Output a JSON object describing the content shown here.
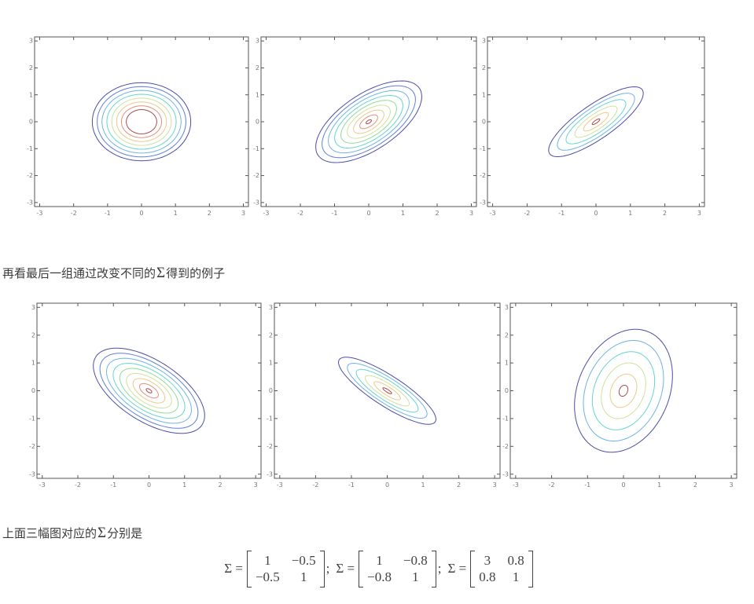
{
  "style": {
    "background": "#ffffff",
    "axis_color": "#555555",
    "tick_label_color": "#777777",
    "caption_color": "#3b3b3b",
    "formula_color": "#424242",
    "jet_palette": [
      "#4d4da6",
      "#5f7fdb",
      "#6fb3e6",
      "#66d6ce",
      "#90dc96",
      "#cde39b",
      "#ecc988",
      "#e28f7a",
      "#a94c4c"
    ]
  },
  "captions": {
    "mid": {
      "pre": "再看最后一组通过改变不同的",
      "sigma": "Σ",
      "post": "得到的例子"
    },
    "bottom": {
      "pre": "上面三幅图对应的",
      "sigma": "Σ",
      "post": "分别是"
    }
  },
  "formula": {
    "entries": [
      {
        "lhs": "Σ =",
        "c00": "1",
        "c01": "−0.5",
        "c10": "−0.5",
        "c11": "1",
        "sep": ";"
      },
      {
        "lhs": "Σ =",
        "c00": "1",
        "c01": "−0.8",
        "c10": "−0.8",
        "c11": "1",
        "sep": ";"
      },
      {
        "lhs": "Σ =",
        "c00": "3",
        "c01": "0.8",
        "c10": "0.8",
        "c11": "1",
        "sep": ""
      }
    ]
  },
  "chart_data": [
    {
      "type": "contour",
      "position": "row1-col1",
      "xlim": [
        -3.15,
        3.15
      ],
      "ylim": [
        -3.15,
        3.15
      ],
      "xticks": [
        -3,
        -2,
        -1,
        0,
        1,
        2,
        3
      ],
      "yticks": [
        -3,
        -2,
        -1,
        0,
        1,
        2,
        3
      ],
      "center": [
        0,
        0
      ],
      "major_semiaxis": 1.45,
      "minor_semiaxis": 1.45,
      "angle_deg": 0,
      "levels": 8,
      "inner_frac": 0.31,
      "title": "",
      "xlabel": "",
      "ylabel": "",
      "grid": false
    },
    {
      "type": "contour",
      "position": "row1-col2",
      "xlim": [
        -3.15,
        3.15
      ],
      "ylim": [
        -3.15,
        3.15
      ],
      "xticks": [
        -3,
        -2,
        -1,
        0,
        1,
        2,
        3
      ],
      "yticks": [
        -3,
        -2,
        -1,
        0,
        1,
        2,
        3
      ],
      "center": [
        0,
        0
      ],
      "major_semiaxis": 1.95,
      "minor_semiaxis": 0.95,
      "angle_deg": 44,
      "levels": 9,
      "inner_frac": 0.05,
      "title": "",
      "xlabel": "",
      "ylabel": "",
      "grid": false
    },
    {
      "type": "contour",
      "position": "row1-col3",
      "xlim": [
        -3.15,
        3.15
      ],
      "ylim": [
        -3.15,
        3.15
      ],
      "xticks": [
        -3,
        -2,
        -1,
        0,
        1,
        2,
        3
      ],
      "yticks": [
        -3,
        -2,
        -1,
        0,
        1,
        2,
        3
      ],
      "center": [
        0,
        0
      ],
      "major_semiaxis": 1.8,
      "minor_semiaxis": 0.58,
      "angle_deg": 43,
      "levels": 6,
      "inner_frac": 0.08,
      "title": "",
      "xlabel": "",
      "ylabel": "",
      "grid": false
    },
    {
      "type": "contour",
      "position": "row2-col1",
      "sigma_matrix": [
        [
          1,
          -0.5
        ],
        [
          -0.5,
          1
        ]
      ],
      "xlim": [
        -3.15,
        3.15
      ],
      "ylim": [
        -3.15,
        3.15
      ],
      "xticks": [
        -3,
        -2,
        -1,
        0,
        1,
        2,
        3
      ],
      "yticks": [
        -3,
        -2,
        -1,
        0,
        1,
        2,
        3
      ],
      "center": [
        0,
        0
      ],
      "major_semiaxis": 1.95,
      "minor_semiaxis": 1.0,
      "angle_deg": -44,
      "levels": 9,
      "inner_frac": 0.05,
      "title": "",
      "xlabel": "",
      "ylabel": "",
      "grid": false
    },
    {
      "type": "contour",
      "position": "row2-col2",
      "sigma_matrix": [
        [
          1,
          -0.8
        ],
        [
          -0.8,
          1
        ]
      ],
      "xlim": [
        -3.15,
        3.15
      ],
      "ylim": [
        -3.15,
        3.15
      ],
      "xticks": [
        -3,
        -2,
        -1,
        0,
        1,
        2,
        3
      ],
      "yticks": [
        -3,
        -2,
        -1,
        0,
        1,
        2,
        3
      ],
      "center": [
        0,
        0
      ],
      "major_semiaxis": 1.75,
      "minor_semiaxis": 0.5,
      "angle_deg": -41,
      "levels": 6,
      "inner_frac": 0.09,
      "title": "",
      "xlabel": "",
      "ylabel": "",
      "grid": false
    },
    {
      "type": "contour",
      "position": "row2-col3",
      "sigma_matrix": [
        [
          3,
          0.8
        ],
        [
          0.8,
          1
        ]
      ],
      "xlim": [
        -3.15,
        3.15
      ],
      "ylim": [
        -3.15,
        3.15
      ],
      "xticks": [
        -3,
        -2,
        -1,
        0,
        1,
        2,
        3
      ],
      "yticks": [
        -3,
        -2,
        -1,
        0,
        1,
        2,
        3
      ],
      "center": [
        0,
        0
      ],
      "major_semiaxis": 2.25,
      "minor_semiaxis": 1.3,
      "angle_deg": 77,
      "levels": 6,
      "inner_frac": 0.09,
      "title": "",
      "xlabel": "",
      "ylabel": "",
      "grid": false
    }
  ]
}
